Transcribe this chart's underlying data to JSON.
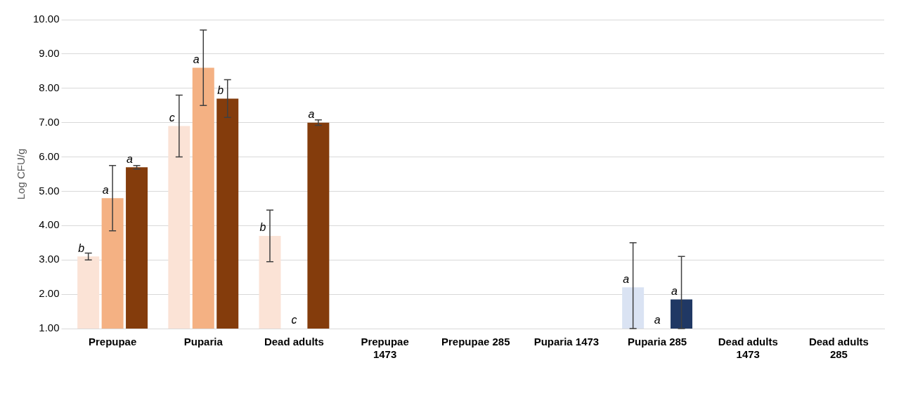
{
  "chart_data": {
    "type": "bar",
    "ylabel": "Log CFU/g",
    "categories": [
      "Prepupae",
      "Puparia",
      "Dead adults",
      "Prepupae 1473",
      "Prepupae 285",
      "Puparia 1473",
      "Puparia 285",
      "Dead adults 1473",
      "Dead adults 285"
    ],
    "series": [
      {
        "colors": [
          "#fbe3d6",
          "#fbe3d6",
          "#fbe3d6",
          null,
          null,
          null,
          "#dae3f3",
          null,
          null
        ],
        "values": [
          3.1,
          6.9,
          3.7,
          null,
          null,
          null,
          2.2,
          null,
          null
        ],
        "errors": [
          0.1,
          0.9,
          0.75,
          null,
          null,
          null,
          [
            1.0,
            3.5
          ],
          null,
          null
        ],
        "value_labels": [
          "b",
          "c",
          "b",
          null,
          null,
          null,
          "a",
          null,
          null
        ]
      },
      {
        "colors": [
          "#f4b183",
          "#f4b183",
          "#f4b183",
          null,
          null,
          null,
          "#f4b183",
          null,
          null
        ],
        "values": [
          4.8,
          8.6,
          1.0,
          null,
          null,
          null,
          1.0,
          null,
          null
        ],
        "errors": [
          0.95,
          1.1,
          null,
          null,
          null,
          null,
          null,
          null,
          null
        ],
        "value_labels": [
          "a",
          "a",
          "c",
          null,
          null,
          null,
          "a",
          null,
          null
        ]
      },
      {
        "colors": [
          "#843c0c",
          "#843c0c",
          "#843c0c",
          null,
          null,
          null,
          "#203864",
          null,
          null
        ],
        "values": [
          5.7,
          7.7,
          7.0,
          null,
          null,
          null,
          1.85,
          null,
          null
        ],
        "errors": [
          0.05,
          0.55,
          0.08,
          null,
          null,
          null,
          [
            1.0,
            3.1
          ],
          null,
          null
        ],
        "value_labels": [
          "a",
          "b",
          "a",
          null,
          null,
          null,
          "a",
          null,
          null
        ]
      }
    ],
    "ylim": [
      1,
      10
    ],
    "yticks": [
      {
        "value": 1,
        "label": "1.00"
      },
      {
        "value": 2,
        "label": "2.00"
      },
      {
        "value": 3,
        "label": "3.00"
      },
      {
        "value": 4,
        "label": "4.00"
      },
      {
        "value": 5,
        "label": "5.00"
      },
      {
        "value": 6,
        "label": "6.00"
      },
      {
        "value": 7,
        "label": "7.00"
      },
      {
        "value": 8,
        "label": "8.00"
      },
      {
        "value": 9,
        "label": "9.00"
      },
      {
        "value": 10,
        "label": "10.00"
      }
    ],
    "grid": "y",
    "legend": false
  }
}
